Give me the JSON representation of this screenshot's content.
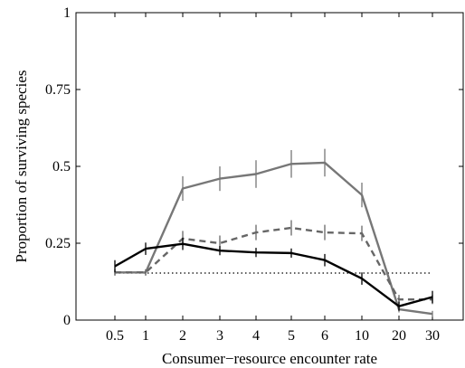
{
  "chart_data": {
    "type": "line",
    "title": "",
    "xlabel": "Consumer−resource encounter rate",
    "ylabel": "Proportion of surviving species",
    "categories": [
      "0.5",
      "1",
      "2",
      "3",
      "4",
      "5",
      "6",
      "10",
      "20",
      "30"
    ],
    "yticks": [
      "0",
      "0.25",
      "0.5",
      "0.75",
      "1"
    ],
    "ylim": [
      0,
      1
    ],
    "grid": false,
    "legend": "none",
    "series": [
      {
        "style": "solid",
        "color": "#000000",
        "values": [
          0.175,
          0.232,
          0.248,
          0.226,
          0.22,
          0.218,
          0.195,
          0.135,
          0.045,
          0.075
        ],
        "errors": [
          0.02,
          0.02,
          0.02,
          0.015,
          0.015,
          0.015,
          0.02,
          0.02,
          0.015,
          0.02
        ]
      },
      {
        "style": "dashed",
        "color": "#666666",
        "values": [
          0.155,
          0.155,
          0.265,
          0.25,
          0.285,
          0.3,
          0.285,
          0.282,
          0.067,
          0.067
        ],
        "errors": [
          0.01,
          0.01,
          0.025,
          0.025,
          0.025,
          0.025,
          0.025,
          0.025,
          0.015,
          0.015
        ]
      },
      {
        "style": "solid",
        "color": "#777777",
        "values": [
          0.155,
          0.155,
          0.428,
          0.46,
          0.475,
          0.508,
          0.512,
          0.407,
          0.035,
          0.02
        ],
        "errors": [
          0.01,
          0.01,
          0.04,
          0.04,
          0.045,
          0.045,
          0.045,
          0.04,
          0.01,
          0.01
        ]
      },
      {
        "style": "dotted",
        "color": "#000000",
        "values": [
          0.153,
          0.153,
          0.153,
          0.153,
          0.153,
          0.153,
          0.153,
          0.153,
          0.153,
          0.153
        ]
      }
    ]
  }
}
